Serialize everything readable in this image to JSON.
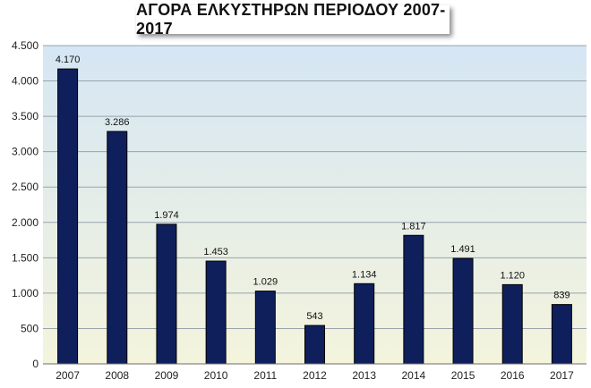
{
  "chart_data": {
    "type": "bar",
    "title": "ΑΓΟΡΑ ΕΛΚΥΣΤΗΡΩΝ ΠΕΡΙΟΔΟΥ 2007-2017",
    "categories": [
      "2007",
      "2008",
      "2009",
      "2010",
      "2011",
      "2012",
      "2013",
      "2014",
      "2015",
      "2016",
      "2017"
    ],
    "values": [
      4170,
      3286,
      1974,
      1453,
      1029,
      543,
      1134,
      1817,
      1491,
      1120,
      839
    ],
    "value_labels": [
      "4.170",
      "3.286",
      "1.974",
      "1.453",
      "1.029",
      "543",
      "1.134",
      "1.817",
      "1.491",
      "1.120",
      "839"
    ],
    "y_ticks": [
      0,
      500,
      1000,
      1500,
      2000,
      2500,
      3000,
      3500,
      4000,
      4500
    ],
    "y_tick_labels": [
      "0",
      "500",
      "1.000",
      "1.500",
      "2.000",
      "2.500",
      "3.000",
      "3.500",
      "4.000",
      "4.500"
    ],
    "ylim": [
      0,
      4500
    ],
    "grid": true,
    "legend": "none",
    "colors": {
      "bar": "#0f1f5c",
      "bar_edge": "#000000",
      "grid": "#9aa3ad",
      "bg_top": "#d5e6f4",
      "bg_bottom": "#f4f4dc"
    }
  }
}
